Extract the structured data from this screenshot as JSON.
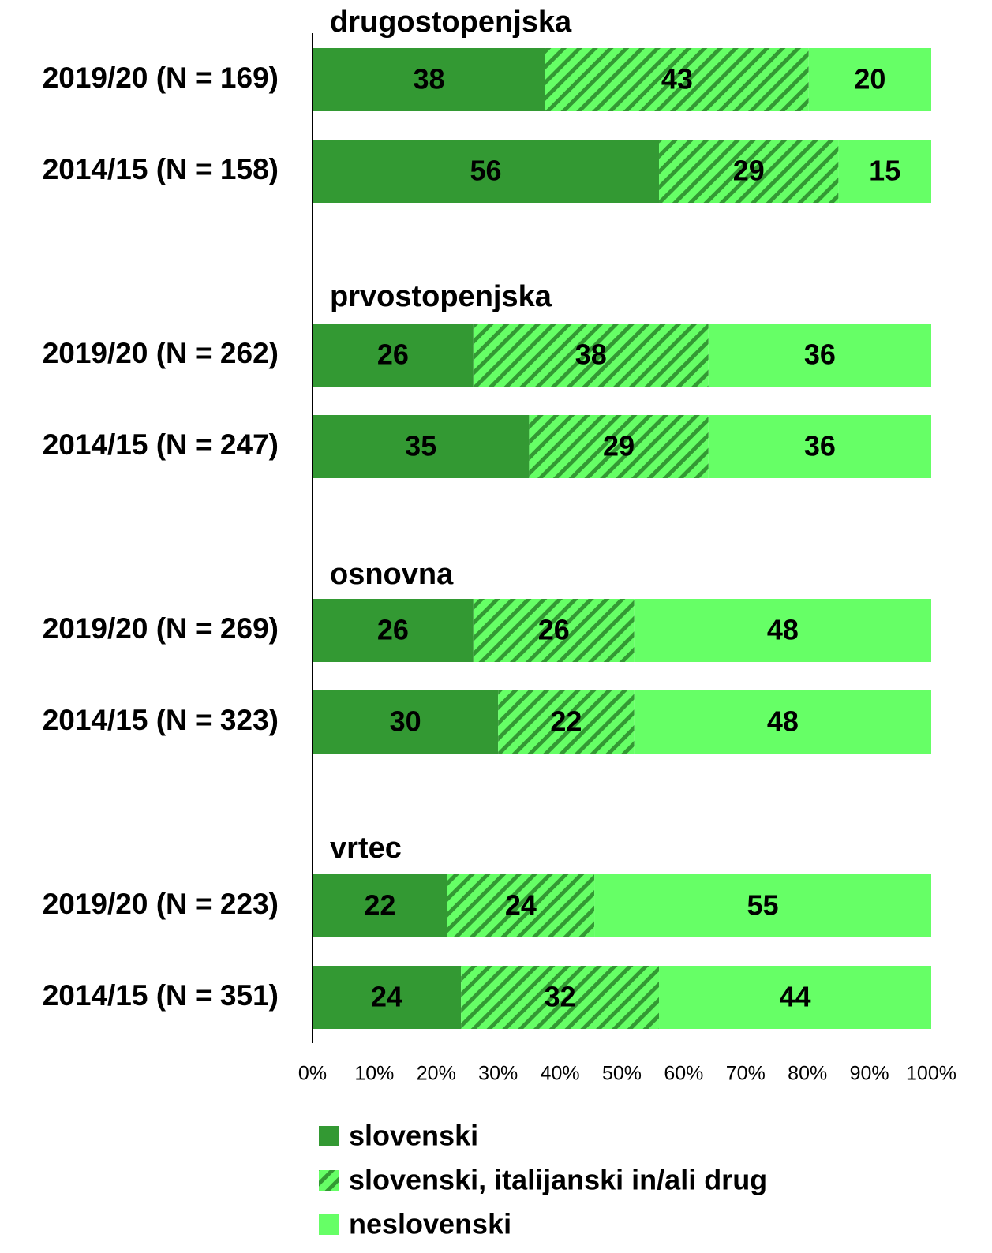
{
  "chart_data": {
    "type": "bar",
    "orientation": "horizontal",
    "stacked": "percent",
    "group_titles": [
      "drugostopenjska",
      "prvostopenjska",
      "osnovna",
      "vrtec"
    ],
    "categories": [
      "2019/20 (N = 169)",
      "2014/15 (N = 158)",
      "2019/20 (N = 262)",
      "2014/15 (N = 247)",
      "2019/20 (N = 269)",
      "2014/15 (N = 323)",
      "2019/20 (N = 223)",
      "2014/15 (N = 351)"
    ],
    "series": [
      {
        "name": "slovenski",
        "color": "#339933",
        "values": [
          38,
          56,
          26,
          35,
          26,
          30,
          22,
          24
        ]
      },
      {
        "name": "slovenski, italijanski in/ali drug",
        "color": "#66ff66",
        "hatch_color": "#339933",
        "values": [
          43,
          29,
          38,
          29,
          26,
          22,
          24,
          32
        ]
      },
      {
        "name": "neslovenski",
        "color": "#66ff66",
        "values": [
          20,
          15,
          36,
          36,
          48,
          48,
          55,
          44
        ]
      }
    ],
    "xlim": [
      0,
      100
    ],
    "xticks": [
      {
        "value": 0,
        "label": "0%"
      },
      {
        "value": 10,
        "label": "10%"
      },
      {
        "value": 20,
        "label": "20%"
      },
      {
        "value": 30,
        "label": "30%"
      },
      {
        "value": 40,
        "label": "40%"
      },
      {
        "value": 50,
        "label": "50%"
      },
      {
        "value": 60,
        "label": "60%"
      },
      {
        "value": 70,
        "label": "70%"
      },
      {
        "value": 80,
        "label": "80%"
      },
      {
        "value": 90,
        "label": "90%"
      },
      {
        "value": 100,
        "label": "100%"
      }
    ],
    "legend": "bottom"
  }
}
